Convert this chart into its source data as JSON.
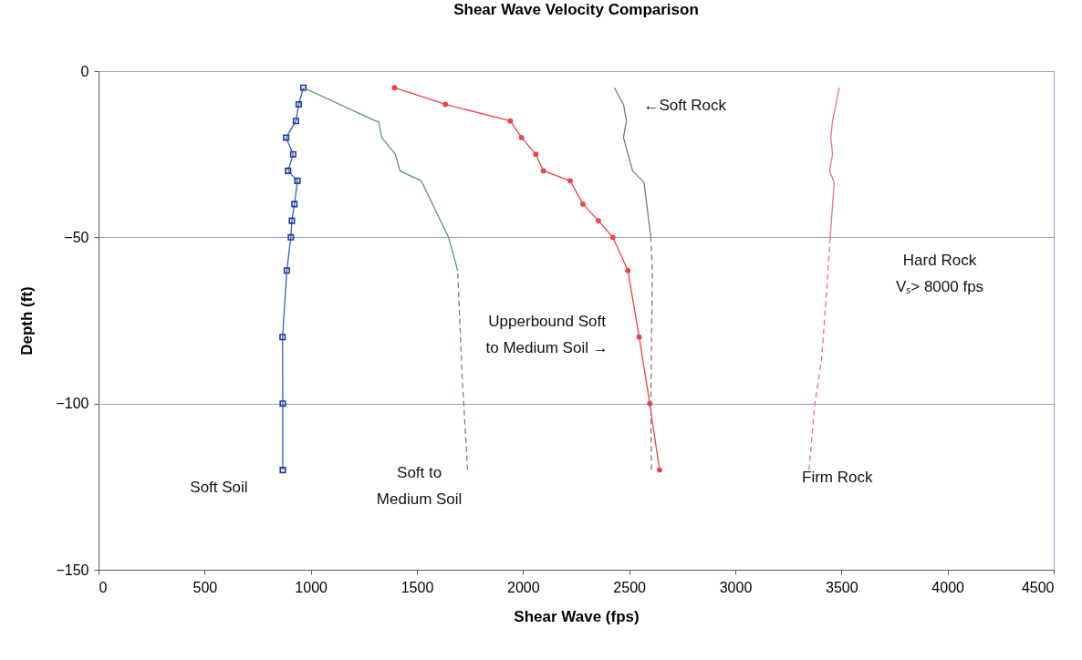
{
  "chart_data": {
    "type": "line",
    "title": "Shear Wave Velocity Comparison",
    "xlabel": "Shear Wave (fps)",
    "ylabel": "Depth (ft)",
    "xlim": [
      0,
      4500
    ],
    "xticks": [
      0,
      500,
      1000,
      1500,
      2000,
      2500,
      3000,
      3500,
      4000,
      4500
    ],
    "ylim": [
      -150,
      0
    ],
    "yticks": [
      0,
      -50,
      -100,
      -150
    ],
    "grid": "y",
    "series": [
      {
        "name": "Soft Soil",
        "color": "#3a5cc8",
        "marker": "square",
        "line_style": "solid",
        "x": [
          965,
          943,
          930,
          884,
          917,
          893,
          937,
          923,
          911,
          906,
          887,
          867,
          868,
          868
        ],
        "values": [
          -5,
          -10,
          -15,
          -20,
          -25,
          -30,
          -33,
          -40,
          -45,
          -50,
          -60,
          -80,
          -100,
          -120
        ]
      },
      {
        "color": "#5f9272",
        "marker": "none",
        "line_style": "solid",
        "x": [
          965,
          1305,
          1320,
          1334,
          1398,
          1420,
          1520,
          1649,
          1692
        ],
        "values": [
          -5,
          -15,
          -15.2,
          -20,
          -25,
          -30,
          -33,
          -50,
          -60
        ]
      },
      {
        "name": "Soft to\nMedium Soil",
        "color": "#5f9272",
        "marker": "none",
        "line_style": "dashed",
        "x": [
          1692,
          1713,
          1732,
          1739
        ],
        "values": [
          -60,
          -92,
          -112.5,
          -120
        ]
      },
      {
        "name": "Upperbound Soft\nto Medium Soil →",
        "color": "#f0404a",
        "marker": "circle",
        "line_style": "solid",
        "x": [
          1394,
          1634,
          1940,
          1993,
          2060,
          2096,
          2222,
          2282,
          2355,
          2423,
          2494,
          2547,
          2597,
          2643
        ],
        "values": [
          -5,
          -10,
          -15,
          -20,
          -25,
          -30,
          -33,
          -40,
          -45,
          -50,
          -60,
          -80,
          -100,
          -120
        ]
      },
      {
        "name": "←Soft Rock",
        "color": "#7a7a7a",
        "marker": "none",
        "line_style": "solid",
        "x": [
          2430,
          2473,
          2487,
          2473,
          2516,
          2570,
          2602
        ],
        "values": [
          -5,
          -10,
          -15,
          -20,
          -30,
          -33.5,
          -50
        ]
      },
      {
        "color": "#7a7a7a",
        "marker": "none",
        "line_style": "dashed",
        "x": [
          2602,
          2609,
          2602,
          2605
        ],
        "values": [
          -50,
          -60,
          -100,
          -120
        ]
      },
      {
        "color": "#f07080",
        "marker": "none",
        "line_style": "solid",
        "x": [
          3490,
          3458,
          3450,
          3458,
          3444,
          3466,
          3447
        ],
        "values": [
          -5,
          -15,
          -20,
          -25,
          -30,
          -33.5,
          -50
        ]
      },
      {
        "name": "Firm Rock",
        "color": "#f07080",
        "marker": "none",
        "line_style": "dashed",
        "x": [
          3447,
          3432,
          3407,
          3375,
          3347
        ],
        "values": [
          -50,
          -64.5,
          -86.5,
          -100,
          -120
        ]
      }
    ],
    "annotations": [
      "Hard Rock\n Vₛ> 8000 fps"
    ]
  }
}
